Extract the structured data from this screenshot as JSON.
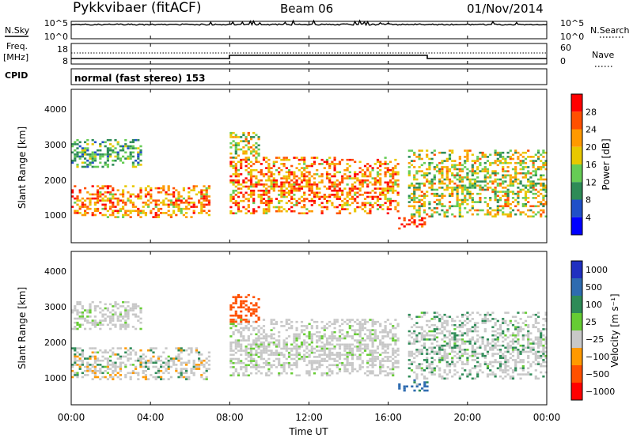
{
  "header": {
    "station": "Pykkvibaer (fitACF)",
    "beam": "Beam 06",
    "date": "01/Nov/2014"
  },
  "noise_panel": {
    "left_label": "N.Sky",
    "right_label": "N.Search",
    "left_ticks": [
      "10^5",
      "10^0"
    ],
    "right_ticks": [
      "10^5",
      "10^0"
    ]
  },
  "freq_panel": {
    "left_label_1": "Freq.",
    "left_label_2": "[MHz]",
    "right_label": "Nave",
    "left_ticks": [
      "18",
      "8"
    ],
    "right_ticks": [
      "60",
      "0"
    ]
  },
  "cpid": {
    "label": "CPID",
    "value": "normal (fast stereo) 153"
  },
  "x_axis": {
    "label": "Time UT",
    "ticks": [
      "00:00",
      "04:00",
      "08:00",
      "12:00",
      "16:00",
      "20:00",
      "00:00"
    ]
  },
  "power_panel": {
    "ylabel": "Slant Range [km]",
    "yticks": [
      "1000",
      "2000",
      "3000",
      "4000"
    ],
    "colorbar_label": "Power [dB]",
    "colorbar_ticks": [
      "4",
      "8",
      "12",
      "16",
      "20",
      "24",
      "28"
    ],
    "colors": [
      "#0000ff",
      "#2050c8",
      "#2e8b57",
      "#66cc55",
      "#e8c800",
      "#ff9900",
      "#ff5000",
      "#ff0000"
    ]
  },
  "velocity_panel": {
    "ylabel": "Slant Range [km]",
    "yticks": [
      "1000",
      "2000",
      "3000",
      "4000"
    ],
    "colorbar_label": "Velocity [m s⁻¹]",
    "colorbar_ticks": [
      "1000",
      "500",
      "100",
      "25",
      "−25",
      "−100",
      "−500",
      "−1000"
    ],
    "colors": [
      "#2030c0",
      "#2e6bb0",
      "#2e8b57",
      "#66cc33",
      "#c8c8c8",
      "#ff9900",
      "#ff5000",
      "#ff0000"
    ]
  },
  "chart_data": {
    "type": "heatmap",
    "x_range_hours": [
      0,
      24
    ],
    "y_range_km": [
      180,
      4500
    ],
    "power_scale_db": [
      0,
      30
    ],
    "velocity_scale_ms": [
      -1000,
      1000
    ],
    "nave_change_times_ut": [
      "08:00",
      "18:00"
    ],
    "echo_regions": [
      {
        "time_ut": [
          "00:00",
          "07:00"
        ],
        "range_km": [
          900,
          1800
        ],
        "power_db": [
          14,
          28
        ],
        "velocity_ms": [
          -100,
          100
        ]
      },
      {
        "time_ut": [
          "00:00",
          "03:30"
        ],
        "range_km": [
          2300,
          3100
        ],
        "power_db": [
          6,
          16
        ],
        "velocity_ms": [
          -25,
          25
        ]
      },
      {
        "time_ut": [
          "08:00",
          "16:30"
        ],
        "range_km": [
          1000,
          2600
        ],
        "power_db": [
          14,
          30
        ],
        "velocity_ms": [
          -25,
          25
        ]
      },
      {
        "time_ut": [
          "08:00",
          "09:30"
        ],
        "range_km": [
          2500,
          3300
        ],
        "power_db": [
          8,
          24
        ],
        "velocity_ms": [
          -500,
          -100
        ]
      },
      {
        "time_ut": [
          "16:30",
          "18:00"
        ],
        "range_km": [
          600,
          900
        ],
        "power_db": [
          20,
          30
        ],
        "velocity_ms": [
          25,
          500
        ]
      },
      {
        "time_ut": [
          "17:00",
          "24:00"
        ],
        "range_km": [
          900,
          2800
        ],
        "power_db": [
          8,
          24
        ],
        "velocity_ms": [
          -25,
          100
        ]
      }
    ]
  }
}
